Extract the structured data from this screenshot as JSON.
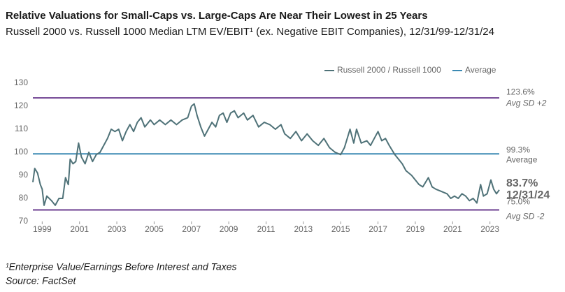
{
  "chart_data": {
    "type": "line",
    "title": "Relative Valuations for Small-Caps vs. Large-Caps Are Near Their Lowest in 25 Years",
    "subtitle": "Russell 2000 vs. Russell 1000 Median LTM EV/EBIT¹ (ex. Negative EBIT Companies), 12/31/99-12/31/24",
    "x": [
      1998.5,
      1998.6,
      1998.75,
      1998.9,
      1999.0,
      1999.1,
      1999.25,
      1999.5,
      1999.7,
      1999.9,
      2000.1,
      2000.25,
      2000.4,
      2000.5,
      2000.65,
      2000.8,
      2000.95,
      2001.1,
      2001.3,
      2001.5,
      2001.7,
      2001.9,
      2002.1,
      2002.3,
      2002.5,
      2002.7,
      2002.9,
      2003.1,
      2003.3,
      2003.5,
      2003.7,
      2003.9,
      2004.1,
      2004.3,
      2004.5,
      2004.8,
      2005.0,
      2005.3,
      2005.6,
      2005.9,
      2006.2,
      2006.5,
      2006.8,
      2007.0,
      2007.15,
      2007.3,
      2007.5,
      2007.7,
      2007.9,
      2008.1,
      2008.3,
      2008.5,
      2008.7,
      2008.9,
      2009.1,
      2009.3,
      2009.5,
      2009.8,
      2010.0,
      2010.3,
      2010.6,
      2010.9,
      2011.2,
      2011.5,
      2011.8,
      2012.0,
      2012.3,
      2012.6,
      2012.9,
      2013.2,
      2013.5,
      2013.8,
      2014.1,
      2014.4,
      2014.7,
      2015.0,
      2015.2,
      2015.5,
      2015.7,
      2015.85,
      2016.1,
      2016.4,
      2016.6,
      2016.8,
      2017.0,
      2017.2,
      2017.4,
      2017.6,
      2017.9,
      2018.1,
      2018.3,
      2018.5,
      2018.8,
      2019.0,
      2019.2,
      2019.4,
      2019.7,
      2019.9,
      2020.1,
      2020.4,
      2020.7,
      2020.9,
      2021.1,
      2021.3,
      2021.5,
      2021.7,
      2021.9,
      2022.1,
      2022.3,
      2022.5,
      2022.65,
      2022.85,
      2023.05,
      2023.2,
      2023.35,
      2023.5
    ],
    "series": [
      {
        "name": "Russell 2000 / Russell 1000",
        "color": "#4f7278",
        "values": [
          87,
          93,
          91,
          86,
          84,
          77,
          81,
          79,
          77,
          80,
          80,
          89,
          86,
          97,
          95,
          96,
          104,
          98,
          95,
          100,
          96,
          99,
          100,
          103,
          106,
          110,
          109,
          110,
          105,
          109,
          112,
          109,
          113,
          115,
          111,
          114,
          112,
          114,
          112,
          114,
          112,
          114,
          115,
          120,
          121,
          116,
          111,
          107,
          110,
          113,
          111,
          116,
          117,
          113,
          117,
          118,
          115,
          117,
          114,
          116,
          111,
          113,
          112,
          110,
          112,
          108,
          106,
          109,
          105,
          108,
          105,
          103,
          106,
          102,
          100,
          99,
          102,
          110,
          104,
          110,
          104,
          105,
          103,
          106,
          109,
          105,
          106,
          103,
          99,
          97,
          95,
          92,
          90,
          88,
          86,
          85,
          89,
          85,
          84,
          83,
          82,
          80,
          81,
          80,
          82,
          81,
          79,
          80,
          78,
          86,
          81,
          82,
          88,
          84,
          82,
          83.7
        ]
      }
    ],
    "reference_lines": [
      {
        "name": "Avg SD +2",
        "value": 123.6,
        "label": "123.6%",
        "color": "#6b3d8f"
      },
      {
        "name": "Average",
        "value": 99.3,
        "label": "99.3%",
        "color": "#3c8ab3"
      },
      {
        "name": "Avg SD -2",
        "value": 75.0,
        "label": "75.0%",
        "color": "#6b3d8f"
      }
    ],
    "end_label": {
      "value": 83.7,
      "label": "83.7%",
      "date": "12/31/24"
    },
    "xlim": [
      1998.5,
      2023.5
    ],
    "xticks": [
      1999,
      2001,
      2003,
      2005,
      2007,
      2009,
      2011,
      2013,
      2015,
      2017,
      2019,
      2021,
      2023
    ],
    "ylim": [
      70,
      130
    ],
    "yticks": [
      70,
      80,
      90,
      100,
      110,
      120,
      130
    ],
    "grid": false,
    "legend": "upper right",
    "footnote": "¹Enterprise Value/Earnings Before Interest and Taxes",
    "source": "Source: FactSet"
  }
}
